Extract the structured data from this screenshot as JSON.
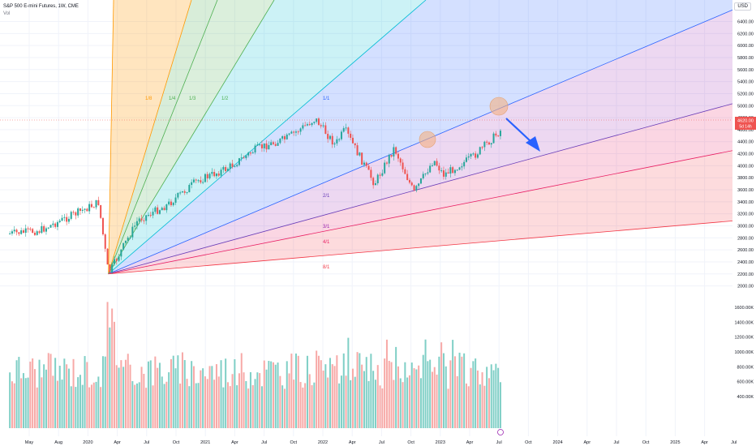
{
  "header": {
    "title": "S&P 500 E-mini Futures, 1W, CME",
    "indicator": "Vol"
  },
  "currency_label": "USD",
  "price_tag": "4620.00",
  "countdown_tag": "5d 14h",
  "colors": {
    "up": "#26a69a",
    "down": "#ef5350",
    "up_vol": "#7fcfc6",
    "down_vol": "#f7a9a7",
    "arrow": "#2962ff",
    "circle": "#f4b183"
  },
  "chart_data": [
    {
      "type": "candlestick",
      "price_axis": {
        "ticks": [
          6400,
          6200,
          6000,
          5800,
          5600,
          5400,
          5200,
          5000,
          4800,
          4600,
          4400,
          4200,
          4000,
          3800,
          3600,
          3400,
          3200,
          3000,
          2800,
          2600,
          2400,
          2200,
          2000
        ],
        "ylim": [
          1900,
          6650
        ]
      },
      "volume_axis": {
        "ticks": [
          1600,
          1400,
          1200,
          1000,
          800,
          600,
          400
        ],
        "unit": "K"
      },
      "x_axis": {
        "ticks": [
          "May",
          "Aug",
          "2020",
          "Apr",
          "Jul",
          "Oct",
          "2021",
          "Apr",
          "Jul",
          "Oct",
          "2022",
          "Apr",
          "Jul",
          "Oct",
          "2023",
          "Apr",
          "Jul",
          "Oct",
          "2024",
          "Apr",
          "Jul",
          "Oct",
          "2025",
          "Apr",
          "Jul"
        ]
      },
      "price_path": [
        [
          "2019-05",
          2870
        ],
        [
          "2019-08",
          2920
        ],
        [
          "2019-11",
          3150
        ],
        [
          "2020-02",
          3390
        ],
        [
          "2020-03",
          2200
        ],
        [
          "2020-06",
          3100
        ],
        [
          "2020-09",
          3350
        ],
        [
          "2020-12",
          3750
        ],
        [
          "2021-03",
          3950
        ],
        [
          "2021-06",
          4280
        ],
        [
          "2021-09",
          4450
        ],
        [
          "2021-12",
          4780
        ],
        [
          "2022-02",
          4350
        ],
        [
          "2022-03",
          4600
        ],
        [
          "2022-06",
          3700
        ],
        [
          "2022-08",
          4300
        ],
        [
          "2022-10",
          3550
        ],
        [
          "2022-12",
          4100
        ],
        [
          "2023-01",
          3850
        ],
        [
          "2023-04",
          4150
        ],
        [
          "2023-07",
          4620
        ]
      ],
      "gann_fan": {
        "origin": [
          "2020-03",
          2200
        ],
        "labels": [
          "1/8",
          "1/4",
          "1/3",
          "1/2",
          "1/1",
          "2/1",
          "3/1",
          "4/1",
          "8/1"
        ]
      },
      "annotations": [
        "resistance-touch circle 2023-02",
        "resistance-touch circle 2023-07",
        "downward arrow projection"
      ]
    }
  ]
}
